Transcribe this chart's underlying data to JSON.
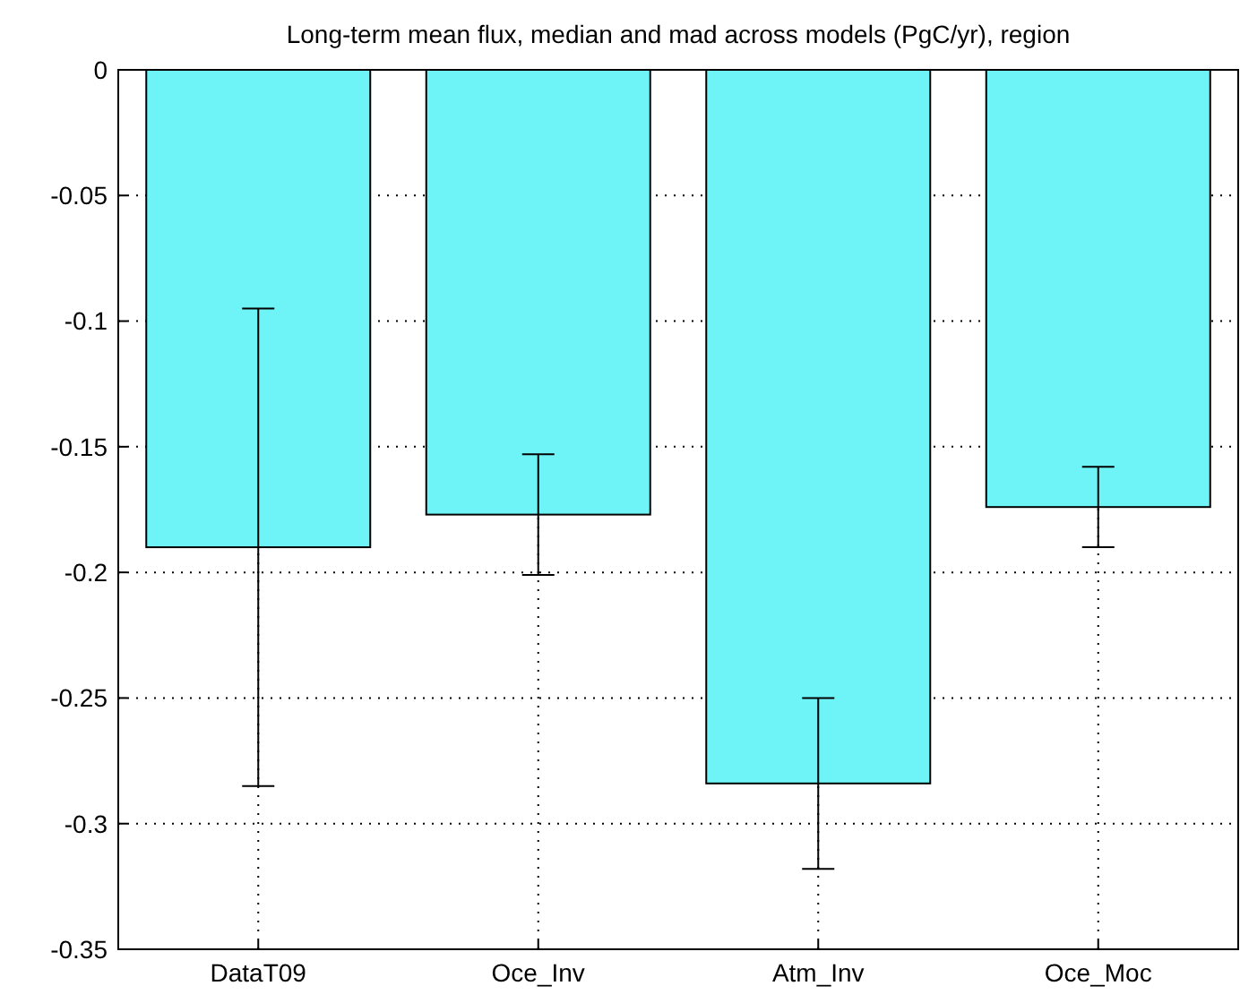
{
  "chart_data": {
    "type": "bar",
    "title": "Long-term  mean flux, median and mad across models (PgC/yr), region",
    "categories": [
      "DataT09",
      "Oce_Inv",
      "Atm_Inv",
      "Oce_Moc"
    ],
    "values": [
      -0.19,
      -0.177,
      -0.284,
      -0.174
    ],
    "errors": [
      0.095,
      0.024,
      0.034,
      0.016
    ],
    "color": "#6ef4f6",
    "ylim": [
      -0.35,
      0
    ],
    "yticks": [
      -0.35,
      -0.3,
      -0.25,
      -0.2,
      -0.15,
      -0.1,
      -0.05,
      0
    ],
    "grid": true
  }
}
